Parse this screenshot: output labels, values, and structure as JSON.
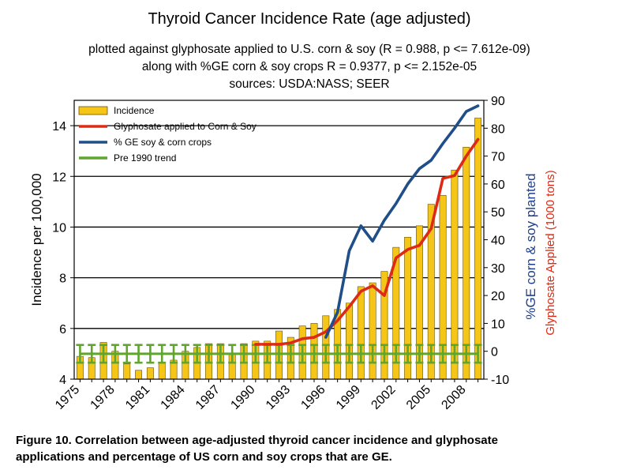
{
  "chart_data": {
    "type": "bar",
    "title": "Thyroid Cancer Incidence Rate (age adjusted)",
    "subtitle_lines": [
      "plotted against glyphosate applied to U.S. corn & soy (R = 0.988, p <= 7.612e-09)",
      "along with %GE corn & soy crops R = 0.9377, p <= 2.152e-05",
      "sources: USDA:NASS; SEER"
    ],
    "xlabel": "",
    "ylabel": "Incidence per 100,000",
    "y2label_blue": "%GE corn & soy planted",
    "y2label_red": "Glyphosate Applied (1000 tons)",
    "ylim": [
      4,
      15
    ],
    "y_ticks": [
      4,
      6,
      8,
      10,
      12,
      14
    ],
    "y2lim": [
      -10,
      90
    ],
    "y2_ticks": [
      -10,
      0,
      10,
      20,
      30,
      40,
      50,
      60,
      70,
      80,
      90
    ],
    "x_tick_labels": [
      "1975",
      "1978",
      "1981",
      "1984",
      "1987",
      "1990",
      "1993",
      "1996",
      "1999",
      "2002",
      "2005",
      "2008"
    ],
    "years": [
      1975,
      1976,
      1977,
      1978,
      1979,
      1980,
      1981,
      1982,
      1983,
      1984,
      1985,
      1986,
      1987,
      1988,
      1989,
      1990,
      1991,
      1992,
      1993,
      1994,
      1995,
      1996,
      1997,
      1998,
      1999,
      2000,
      2001,
      2002,
      2003,
      2004,
      2005,
      2006,
      2007,
      2008,
      2009
    ],
    "series": [
      {
        "name": "Incidence",
        "axis": "left",
        "color": "#f5c518",
        "values": [
          4.9,
          4.85,
          5.45,
          5.1,
          4.6,
          4.35,
          4.45,
          4.65,
          4.75,
          5.1,
          5.25,
          5.4,
          5.4,
          5.0,
          5.4,
          5.5,
          5.5,
          5.9,
          5.65,
          6.1,
          6.2,
          6.5,
          6.75,
          7.0,
          7.65,
          7.8,
          8.25,
          9.2,
          9.6,
          10.05,
          10.9,
          11.25,
          12.25,
          13.15,
          14.3
        ]
      },
      {
        "name": "Glyphosate applied to Corn & Soy",
        "axis": "right",
        "color": "#dd2a15",
        "start_index": 15,
        "values": [
          2.5,
          2.5,
          2.5,
          3,
          4.5,
          5,
          7,
          11,
          16,
          21.5,
          23.5,
          20,
          33.5,
          36.5,
          38,
          44,
          62,
          63,
          70,
          76
        ]
      },
      {
        "name": "% GE soy & corn crops",
        "axis": "right",
        "color": "#1f4e89",
        "start_index": 21,
        "values": [
          5,
          14,
          36,
          45,
          39.5,
          47,
          53,
          60,
          65.5,
          68.5,
          74.5,
          80,
          86,
          88
        ]
      },
      {
        "name": "Pre 1990 trend",
        "axis": "left",
        "color": "#5fa52e",
        "values": [
          5.0,
          5.0,
          5.0,
          5.0,
          5.0,
          5.0,
          5.0,
          5.0,
          5.0,
          5.0,
          5.0,
          5.0,
          5.0,
          5.0,
          5.0,
          5.0,
          5.0,
          5.0,
          5.0,
          5.0,
          5.0,
          5.0,
          5.0,
          5.0,
          5.0,
          5.0,
          5.0,
          5.0,
          5.0,
          5.0,
          5.0,
          5.0,
          5.0,
          5.0,
          5.0
        ],
        "error_low": 4.65,
        "error_high": 5.35
      }
    ],
    "legend": [
      "Incidence",
      "Glyphosate applied to Corn & Soy",
      "% GE soy & corn crops",
      "Pre 1990 trend"
    ],
    "legend_position": "top-left",
    "grid": true
  },
  "caption_lines": [
    "Figure 10. Correlation between age-adjusted thyroid cancer incidence and glyphosate",
    "applications and percentage of US corn and soy crops that are GE."
  ]
}
